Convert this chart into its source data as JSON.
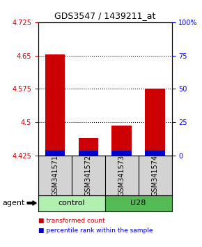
{
  "title": "GDS3547 / 1439211_at",
  "samples": [
    "GSM341571",
    "GSM341572",
    "GSM341573",
    "GSM341574"
  ],
  "bar_base": 4.425,
  "red_tops": [
    4.652,
    4.465,
    4.492,
    4.575
  ],
  "blue_tops": [
    4.437,
    4.436,
    4.436,
    4.437
  ],
  "ylim_left": [
    4.425,
    4.725
  ],
  "yticks_left": [
    4.425,
    4.5,
    4.575,
    4.65,
    4.725
  ],
  "ylim_right": [
    0,
    100
  ],
  "yticks_right": [
    0,
    25,
    50,
    75,
    100
  ],
  "yticklabels_right": [
    "0",
    "25",
    "50",
    "75",
    "100%"
  ],
  "red_color": "#cc0000",
  "blue_color": "#0000cc",
  "bar_width": 0.6,
  "bg_sample": "#d3d3d3",
  "bg_control": "#b2f0b2",
  "bg_u28": "#55bb55",
  "legend_red": "transformed count",
  "legend_blue": "percentile rank within the sample",
  "group_label": "agent"
}
